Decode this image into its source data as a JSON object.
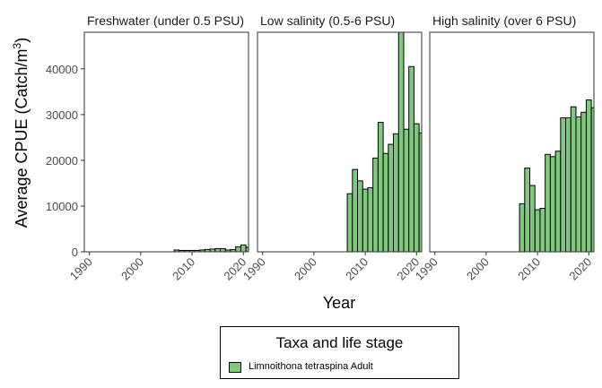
{
  "chart_data": {
    "type": "bar",
    "xlabel": "Year",
    "ylabel_main": "Average CPUE (Catch/m",
    "ylabel_sup": "3",
    "ylabel_end": ")",
    "xlim": [
      1989,
      2021
    ],
    "ylim": [
      0,
      48000
    ],
    "xticks": [
      1990,
      2000,
      2010,
      2020
    ],
    "yticks": [
      0,
      10000,
      20000,
      30000,
      40000
    ],
    "grid": false,
    "legend": {
      "title": "Taxa and life stage",
      "position": "bottom",
      "entries": [
        {
          "label": "Limnoithona tetraspina Adult",
          "color": "#7fc97f"
        }
      ]
    },
    "bar_color": "#7fc97f",
    "panels": [
      {
        "title": "Freshwater (under 0.5 PSU)",
        "x": [
          2007,
          2008,
          2009,
          2010,
          2011,
          2012,
          2013,
          2014,
          2015,
          2016,
          2017,
          2018,
          2019,
          2020,
          2021
        ],
        "values": [
          400,
          300,
          300,
          300,
          300,
          400,
          500,
          600,
          700,
          700,
          400,
          500,
          1100,
          1500,
          1000
        ]
      },
      {
        "title": "Low salinity (0.5-6 PSU)",
        "x": [
          2007,
          2008,
          2009,
          2010,
          2011,
          2012,
          2013,
          2014,
          2015,
          2016,
          2017,
          2018,
          2019,
          2020,
          2021
        ],
        "values": [
          12700,
          18000,
          15500,
          13700,
          14000,
          20500,
          28300,
          21500,
          23500,
          25800,
          48000,
          26800,
          40500,
          28000,
          26000
        ]
      },
      {
        "title": "High salinity (over 6 PSU)",
        "x": [
          2007,
          2008,
          2009,
          2010,
          2011,
          2012,
          2013,
          2014,
          2015,
          2016,
          2017,
          2018,
          2019,
          2020,
          2021
        ],
        "values": [
          10500,
          18300,
          14500,
          9200,
          9500,
          21300,
          20800,
          22000,
          29300,
          29300,
          31700,
          29500,
          30500,
          33200,
          31500
        ]
      }
    ]
  }
}
